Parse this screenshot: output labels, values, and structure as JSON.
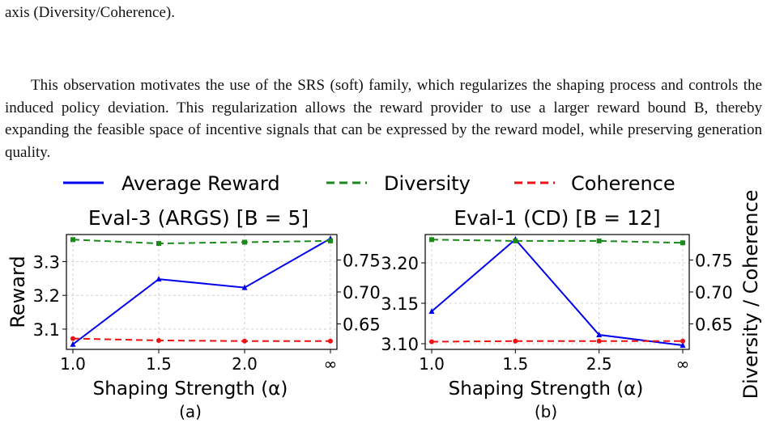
{
  "text": {
    "top_line": "axis (Diversity/Coherence).",
    "paragraph": "This observation motivates the use of the SRS (soft) family, which regularizes the shaping process and controls the induced policy deviation. This regularization allows the reward provider to use a larger reward bound B, thereby expanding the feasible space of incentive signals that can be expressed by the reward model, while preserving generation quality."
  },
  "legend": {
    "reward": "Average Reward",
    "diversity": "Diversity",
    "coherence": "Coherence"
  },
  "colors": {
    "reward": "#0000ee",
    "diversity": "#1a8a1a",
    "coherence": "#ee1111"
  },
  "right_axis_label": "Diversity / Coherence",
  "chart_data": [
    {
      "type": "line",
      "title": "Eval-3 (ARGS) [B = 5]",
      "xlabel": "Shaping Strength (α)",
      "ylabel": "Reward",
      "sublabel": "(a)",
      "categories": [
        "1.0",
        "1.5",
        "2.0",
        "∞"
      ],
      "ylim": [
        3.04,
        3.38
      ],
      "yticks": [
        3.1,
        3.2,
        3.3
      ],
      "y2lim": [
        0.61,
        0.79
      ],
      "y2ticks": [
        0.65,
        0.7,
        0.75
      ],
      "series": [
        {
          "name": "Average Reward",
          "axis": "left",
          "values": [
            3.055,
            3.248,
            3.223,
            3.368
          ]
        },
        {
          "name": "Diversity",
          "axis": "right",
          "values": [
            0.782,
            0.776,
            0.778,
            0.78
          ]
        },
        {
          "name": "Coherence",
          "axis": "right",
          "values": [
            0.627,
            0.624,
            0.623,
            0.623
          ]
        }
      ],
      "grid": true
    },
    {
      "type": "line",
      "title": "Eval-1 (CD) [B = 12]",
      "xlabel": "Shaping Strength (α)",
      "ylabel": "",
      "sublabel": "(b)",
      "categories": [
        "1.0",
        "1.5",
        "2.5",
        "∞"
      ],
      "ylim": [
        3.093,
        3.235
      ],
      "yticks": [
        3.1,
        3.15,
        3.2
      ],
      "y2lim": [
        0.61,
        0.79
      ],
      "y2ticks": [
        0.65,
        0.7,
        0.75
      ],
      "series": [
        {
          "name": "Average Reward",
          "axis": "left",
          "values": [
            3.14,
            3.229,
            3.111,
            3.098
          ]
        },
        {
          "name": "Diversity",
          "axis": "right",
          "values": [
            0.782,
            0.78,
            0.78,
            0.777
          ]
        },
        {
          "name": "Coherence",
          "axis": "right",
          "values": [
            0.622,
            0.623,
            0.623,
            0.623
          ]
        }
      ],
      "grid": true
    }
  ]
}
